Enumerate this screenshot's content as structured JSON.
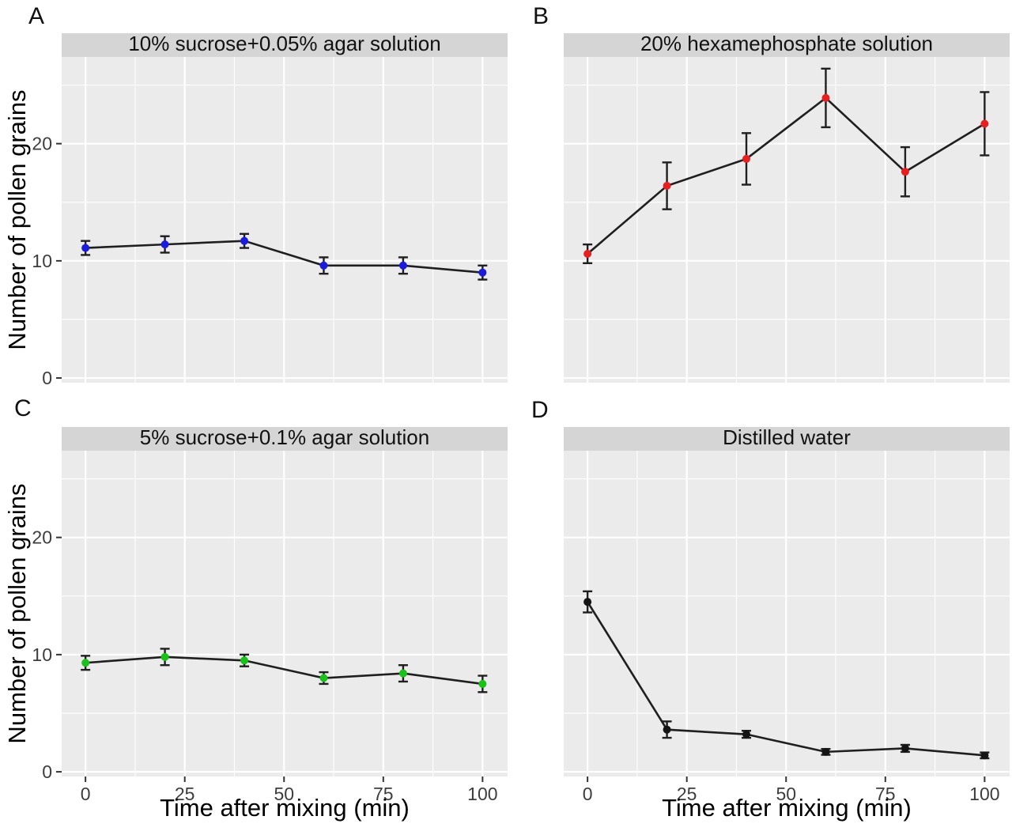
{
  "figure": {
    "background_color": "#ffffff"
  },
  "style": {
    "panel_background": "#ebebeb",
    "strip_background": "#d5d5d5",
    "grid_color": "#ffffff",
    "line_color": "#1f1f1f",
    "errorbar_color": "#1f1f1f",
    "tick_label_color": "#3d3d3d",
    "title_color": "#111111"
  },
  "chart_data": {
    "type": "line",
    "x": [
      0,
      20,
      40,
      60,
      80,
      100
    ],
    "xlabel": "Time after mixing (min)",
    "ylabel": "Number of pollen grains",
    "x_ticks": [
      0,
      25,
      50,
      75,
      100
    ],
    "x_tick_labels": [
      "0",
      "25",
      "50",
      "75",
      "100"
    ],
    "y_ticks": [
      0,
      10,
      20
    ],
    "y_tick_labels": [
      "0",
      "10",
      "20"
    ],
    "x_minor_ticks": [
      12.5,
      37.5,
      62.5,
      87.5
    ],
    "y_minor_ticks": [
      5,
      15,
      25
    ],
    "xlim": [
      -6,
      106.3
    ],
    "ylim": [
      -0.4,
      27.4
    ],
    "grid": "white major and minor gridlines on gray panel",
    "legend": "none",
    "panels": [
      {
        "letter": "A",
        "title": "10% sucrose+0.05% agar solution",
        "point_color": "#1a1ae0",
        "values": [
          11.1,
          11.4,
          11.7,
          9.6,
          9.6,
          9.0
        ],
        "errors": [
          0.6,
          0.7,
          0.6,
          0.7,
          0.7,
          0.6
        ],
        "show_y_labels": true,
        "show_x_labels": false
      },
      {
        "letter": "B",
        "title": "20% hexamephosphate solution",
        "point_color": "#ea1e1e",
        "values": [
          10.6,
          16.4,
          18.7,
          23.9,
          17.6,
          21.7
        ],
        "errors": [
          0.8,
          2.0,
          2.2,
          2.5,
          2.1,
          2.7
        ],
        "show_y_labels": false,
        "show_x_labels": false
      },
      {
        "letter": "C",
        "title": "5% sucrose+0.1% agar solution",
        "point_color": "#17c317",
        "values": [
          9.3,
          9.8,
          9.5,
          8.0,
          8.4,
          7.5
        ],
        "errors": [
          0.6,
          0.7,
          0.5,
          0.5,
          0.7,
          0.7
        ],
        "show_y_labels": true,
        "show_x_labels": true
      },
      {
        "letter": "D",
        "title": "Distilled water",
        "point_color": "#141414",
        "values": [
          14.5,
          3.6,
          3.2,
          1.7,
          2.0,
          1.4
        ],
        "errors": [
          0.9,
          0.7,
          0.3,
          0.25,
          0.3,
          0.25
        ],
        "show_y_labels": false,
        "show_x_labels": true
      }
    ]
  }
}
